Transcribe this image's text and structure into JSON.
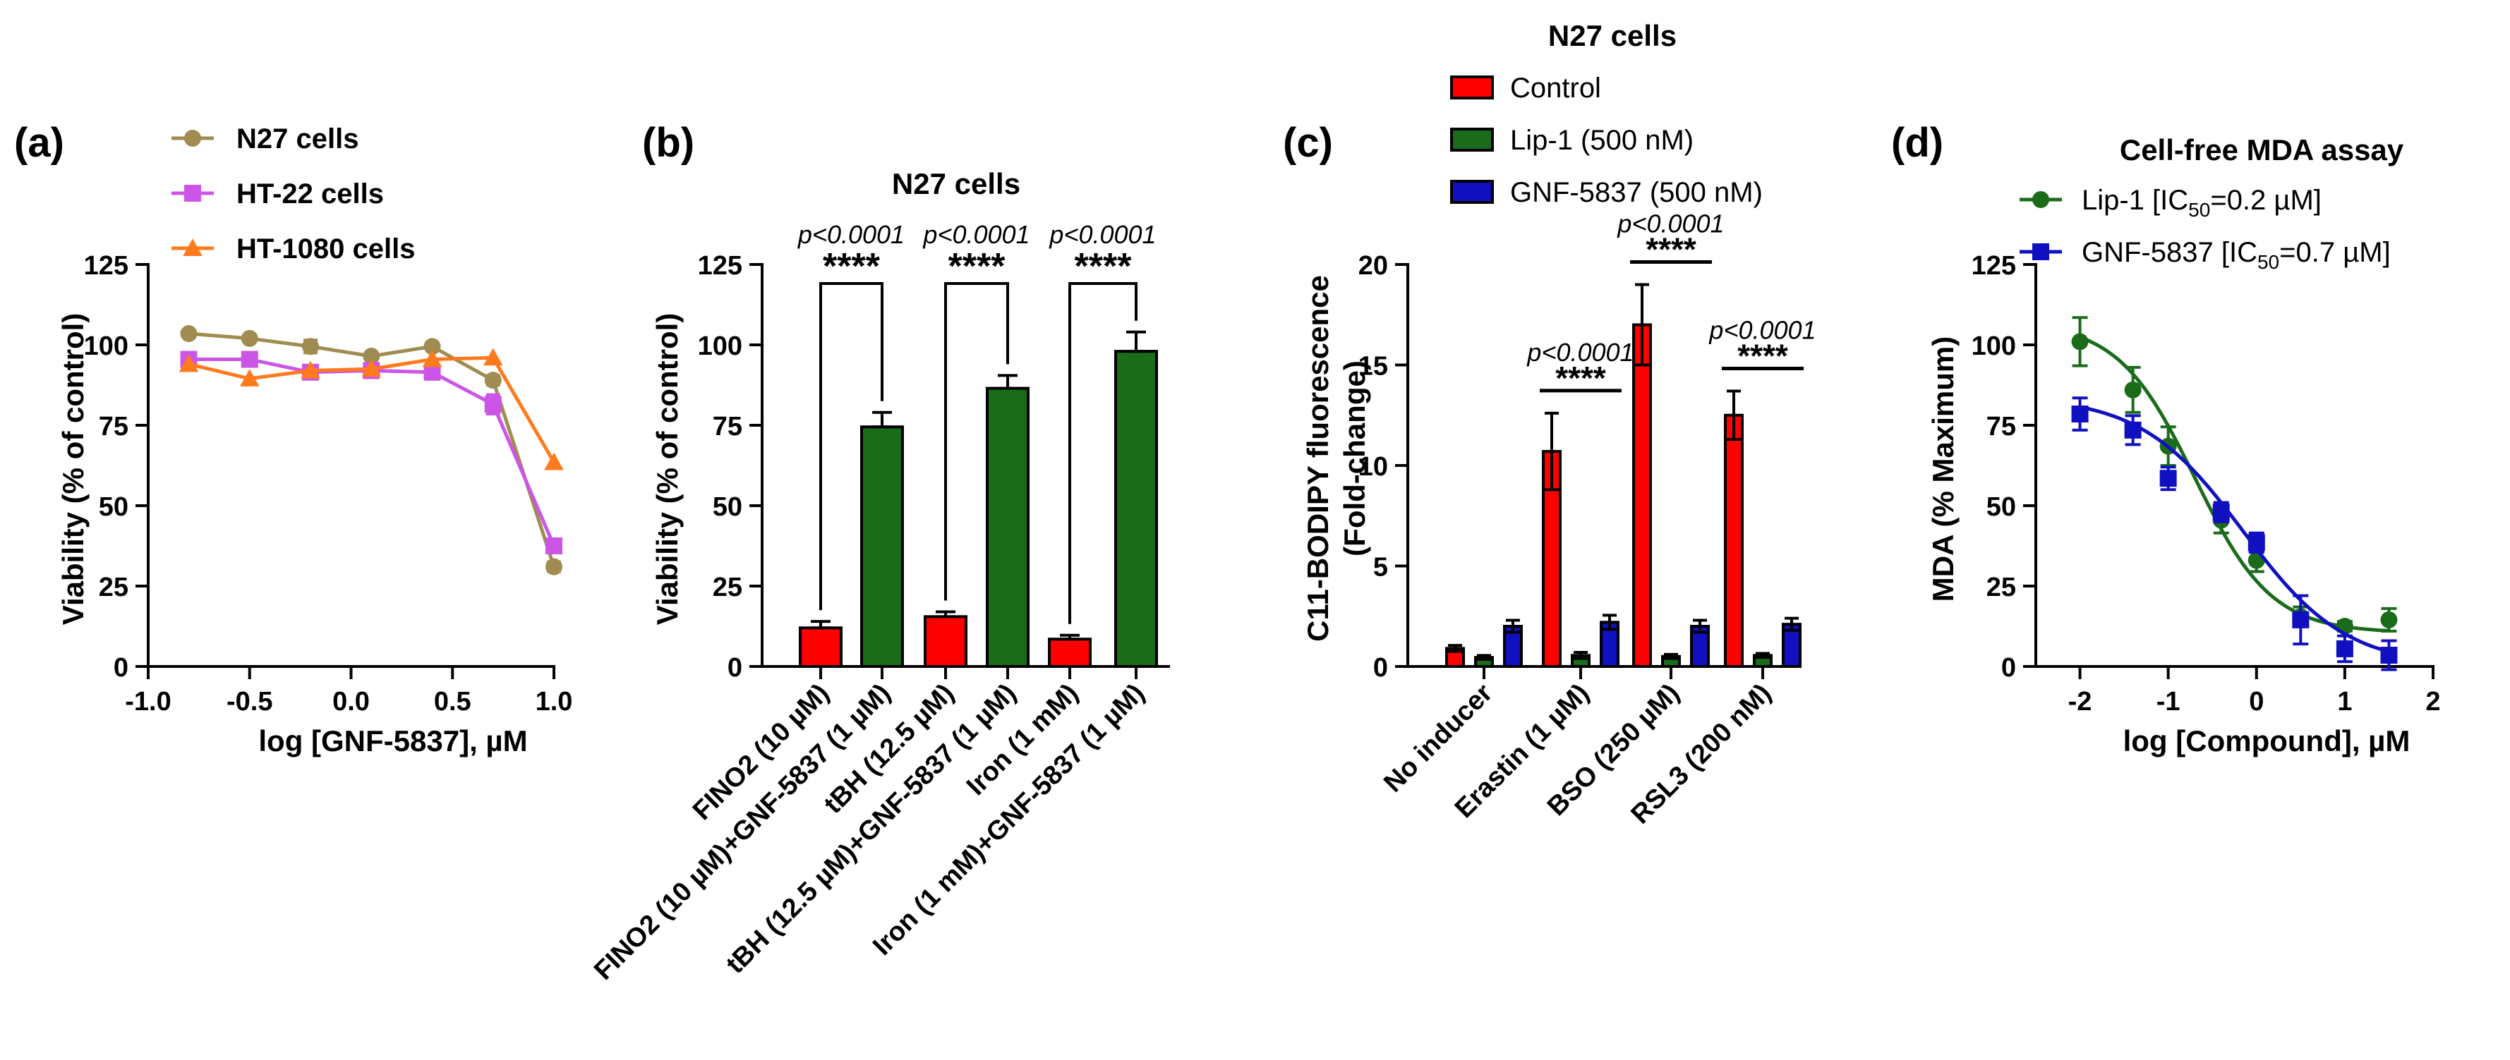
{
  "chart_data": [
    {
      "panel_label": "(a)",
      "type": "line",
      "xlabel": "log [GNF-5837], µM",
      "ylabel": "Viability (% of control)",
      "xlim": [
        -1.0,
        1.0
      ],
      "ylim": [
        0,
        125
      ],
      "xticks": [
        "-1.0",
        "-0.5",
        "0.0",
        "0.5",
        "1.0"
      ],
      "yticks": [
        "0",
        "25",
        "50",
        "75",
        "100",
        "125"
      ],
      "legend_position": "top-left",
      "x": [
        -0.8,
        -0.5,
        -0.2,
        0.1,
        0.4,
        0.7,
        1.0
      ],
      "series": [
        {
          "name": "N27 cells",
          "color": "#a08c50",
          "marker": "circle",
          "values": [
            103.5,
            102,
            99.5,
            96.5,
            99.5,
            89,
            31
          ],
          "errors": [
            0,
            0,
            2,
            0,
            0,
            1.5,
            1.5
          ]
        },
        {
          "name": "HT-22 cells",
          "color": "#cc55e8",
          "marker": "square",
          "values": [
            95.5,
            95.5,
            91.5,
            92,
            91.5,
            81.5,
            37.5
          ],
          "errors": [
            0,
            0,
            0,
            0,
            0,
            3,
            0
          ]
        },
        {
          "name": "HT-1080 cells",
          "color": "#ff7a1c",
          "marker": "triangle",
          "values": [
            94,
            89.5,
            92,
            92.5,
            95.5,
            96,
            63.5
          ],
          "errors": [
            0,
            0,
            0,
            0,
            0,
            0,
            0
          ]
        }
      ]
    },
    {
      "panel_label": "(b)",
      "type": "bar",
      "title": "N27 cells",
      "ylabel": "Viability (% of control)",
      "ylim": [
        0,
        125
      ],
      "yticks": [
        "0",
        "25",
        "50",
        "75",
        "100",
        "125"
      ],
      "categories": [
        "FINO2 (10 µM)",
        "FINO2 (10 µM)+GNF-5837 (1 µM)",
        "tBH (12.5 µM)",
        "tBH (12.5 µM)+GNF-5837 (1 µM)",
        "Iron (1 mM)",
        "Iron (1 mM)+GNF-5837 (1 µM)"
      ],
      "values": [
        12,
        74.5,
        15.5,
        86.5,
        8.5,
        98
      ],
      "errors": [
        2,
        4.5,
        1.5,
        4,
        1.2,
        6
      ],
      "colors": [
        "#ff0000",
        "#1a6b1a",
        "#ff0000",
        "#1a6b1a",
        "#ff0000",
        "#1a6b1a"
      ],
      "comparisons": [
        {
          "p": "p<0.0001",
          "stars": "****"
        },
        {
          "p": "p<0.0001",
          "stars": "****"
        },
        {
          "p": "p<0.0001",
          "stars": "****"
        }
      ]
    },
    {
      "panel_label": "(c)",
      "type": "bar",
      "title": "N27 cells",
      "ylabel": "C11-BODIPY fluorescence (Fold-change)",
      "ylabel_lines": [
        "C11-BODIPY fluorescence",
        "(Fold-change)"
      ],
      "ylim": [
        0,
        20
      ],
      "yticks": [
        "0",
        "5",
        "10",
        "15",
        "20"
      ],
      "legend_position": "top",
      "categories": [
        "No inducer",
        "Erastin (1 µM)",
        "BSO (250 µM)",
        "RSL3 (200 nM)"
      ],
      "series": [
        {
          "name": "Control",
          "color": "#ff0000",
          "values": [
            0.9,
            10.7,
            17,
            12.5
          ],
          "errors": [
            0.15,
            1.9,
            2.0,
            1.2
          ]
        },
        {
          "name": "Lip-1 (500 nM)",
          "color": "#1a6b1a",
          "values": [
            0.45,
            0.55,
            0.5,
            0.55
          ],
          "errors": [
            0.1,
            0.15,
            0.1,
            0.1
          ]
        },
        {
          "name": "GNF-5837 (500 nM)",
          "color": "#1010c0",
          "values": [
            2.0,
            2.2,
            2.0,
            2.1
          ],
          "errors": [
            0.3,
            0.35,
            0.3,
            0.3
          ]
        }
      ],
      "comparisons": [
        {
          "p": "p<0.0001",
          "stars": "****"
        },
        {
          "p": "p<0.0001",
          "stars": "****"
        },
        {
          "p": "p<0.0001",
          "stars": "****"
        }
      ]
    },
    {
      "panel_label": "(d)",
      "type": "scatter",
      "title": "Cell-free MDA assay",
      "xlabel": "log [Compound], µM",
      "ylabel": "MDA (% Maximum)",
      "xlim": [
        -2.5,
        2
      ],
      "ylim": [
        0,
        125
      ],
      "xticks": [
        "-2",
        "-1",
        "0",
        "1",
        "2"
      ],
      "yticks": [
        "0",
        "25",
        "50",
        "75",
        "100",
        "125"
      ],
      "legend_position": "top",
      "x": [
        -2,
        -1.4,
        -1,
        -0.4,
        0,
        0.5,
        1,
        1.5
      ],
      "series": [
        {
          "name_main": "Lip-1 [IC",
          "name_sub": "50",
          "name_tail": "=0.2 µM]",
          "color": "#1a6b1a",
          "marker": "circle",
          "values": [
            101,
            86,
            68.5,
            45.5,
            33,
            15.5,
            12.5,
            14.5
          ],
          "errors": [
            7.5,
            7,
            6,
            4,
            3.5,
            3,
            1.5,
            3.5
          ],
          "fit_logIC50": -0.7,
          "fit_top": 107,
          "fit_bottom": 10.5,
          "fit_hill": 1.0
        },
        {
          "name_main": "GNF-5837 [IC",
          "name_sub": "50",
          "name_tail": "=0.7 µM]",
          "color": "#1010c0",
          "marker": "square",
          "values": [
            78.5,
            73.5,
            58.5,
            48,
            38.5,
            14.5,
            5.5,
            3.5
          ],
          "errors": [
            5,
            4.5,
            3.5,
            3,
            3,
            7.5,
            4,
            4.5
          ],
          "fit_logIC50": -0.15,
          "fit_top": 84,
          "fit_bottom": 0,
          "fit_hill": 0.75
        }
      ]
    }
  ]
}
